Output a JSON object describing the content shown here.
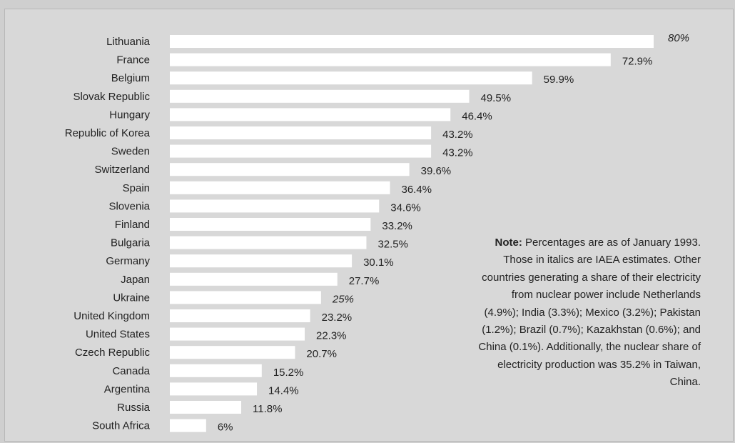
{
  "chart_data": {
    "type": "bar",
    "orientation": "horizontal",
    "categories": [
      "Lithuania",
      "France",
      "Belgium",
      "Slovak Republic",
      "Hungary",
      "Republic of Korea",
      "Sweden",
      "Switzerland",
      "Spain",
      "Slovenia",
      "Finland",
      "Bulgaria",
      "Germany",
      "Japan",
      "Ukraine",
      "United Kingdom",
      "United States",
      "Czech Republic",
      "Canada",
      "Argentina",
      "Russia",
      "South Africa"
    ],
    "values": [
      80,
      72.9,
      59.9,
      49.5,
      46.4,
      43.2,
      43.2,
      39.6,
      36.4,
      34.6,
      33.2,
      32.5,
      30.1,
      27.7,
      25,
      23.2,
      22.3,
      20.7,
      15.2,
      14.4,
      11.8,
      6
    ],
    "value_labels": [
      "80%",
      "72.9%",
      "59.9%",
      "49.5%",
      "46.4%",
      "43.2%",
      "43.2%",
      "39.6%",
      "36.4%",
      "34.6%",
      "33.2%",
      "32.5%",
      "30.1%",
      "27.7%",
      "25%",
      "23.2%",
      "22.3%",
      "20.7%",
      "15.2%",
      "14.4%",
      "11.8%",
      "6%"
    ],
    "estimated": [
      true,
      false,
      false,
      false,
      false,
      false,
      false,
      false,
      false,
      false,
      false,
      false,
      false,
      false,
      true,
      false,
      false,
      false,
      false,
      false,
      false,
      false
    ],
    "xlim": [
      0,
      80
    ],
    "bar_color": "#ffffff",
    "background_color": "#d8d8d8"
  },
  "note": {
    "label": "Note:",
    "text": " Percentages are as of January 1993. Those in italics are IAEA estimates. Other countries generating a share of their electricity from nuclear power include Netherlands (4.9%); India (3.3%); Mexico (3.2%); Pakistan (1.2%); Brazil (0.7%); Kazakhstan (0.6%); and China (0.1%). Additionally, the nuclear share of electricity production was 35.2% in Taiwan, China."
  }
}
